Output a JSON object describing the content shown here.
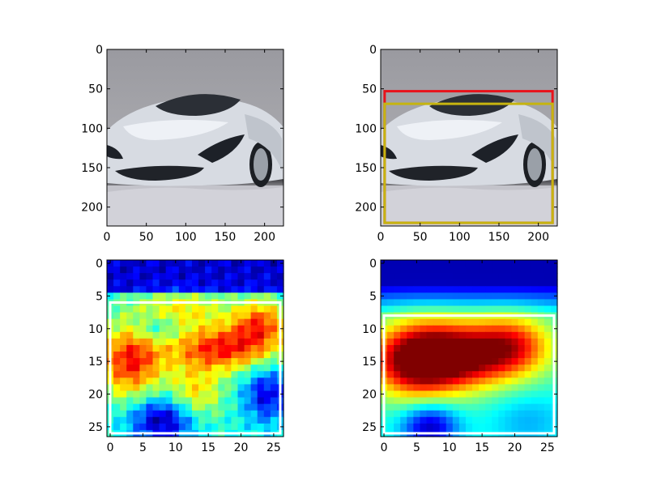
{
  "chart_data": [
    {
      "type": "image",
      "panel": "top-left",
      "content": "photo of a white sports car on a grey studio background",
      "xlim": [
        0,
        224
      ],
      "ylim": [
        224,
        0
      ],
      "xticks": [
        "0",
        "50",
        "100",
        "150",
        "200"
      ],
      "yticks": [
        "0",
        "50",
        "100",
        "150",
        "200"
      ],
      "boxes": []
    },
    {
      "type": "image",
      "panel": "top-right",
      "content": "same car photo with two bounding boxes",
      "xlim": [
        0,
        224
      ],
      "ylim": [
        224,
        0
      ],
      "xticks": [
        "0",
        "50",
        "100",
        "150",
        "200"
      ],
      "yticks": [
        "0",
        "50",
        "100",
        "150",
        "200"
      ],
      "boxes": [
        {
          "color": "#e8131b",
          "x0": 5,
          "y0": 53,
          "x1": 218,
          "y1": 220
        },
        {
          "color": "#c6b410",
          "x0": 5,
          "y0": 69,
          "x1": 218,
          "y1": 220
        }
      ]
    },
    {
      "type": "heatmap",
      "panel": "bottom-left",
      "colormap": "jet",
      "grid_size": 27,
      "xlim": [
        -0.5,
        26.5
      ],
      "ylim": [
        26.5,
        -0.5
      ],
      "xticks": [
        "0",
        "5",
        "10",
        "15",
        "20",
        "25"
      ],
      "yticks": [
        "0",
        "5",
        "10",
        "15",
        "20",
        "25"
      ],
      "boxes": [
        {
          "color": "#ffffff",
          "x0": 0,
          "y0": 6,
          "x1": 26,
          "y1": 26
        }
      ]
    },
    {
      "type": "heatmap",
      "panel": "bottom-right",
      "colormap": "jet",
      "grid_size": 27,
      "xlim": [
        -0.5,
        26.5
      ],
      "ylim": [
        26.5,
        -0.5
      ],
      "xticks": [
        "0",
        "5",
        "10",
        "15",
        "20",
        "25"
      ],
      "yticks": [
        "0",
        "5",
        "10",
        "15",
        "20",
        "25"
      ],
      "boxes": [
        {
          "color": "#ffffff",
          "x0": 0,
          "y0": 8,
          "x1": 26,
          "y1": 26
        }
      ]
    }
  ]
}
